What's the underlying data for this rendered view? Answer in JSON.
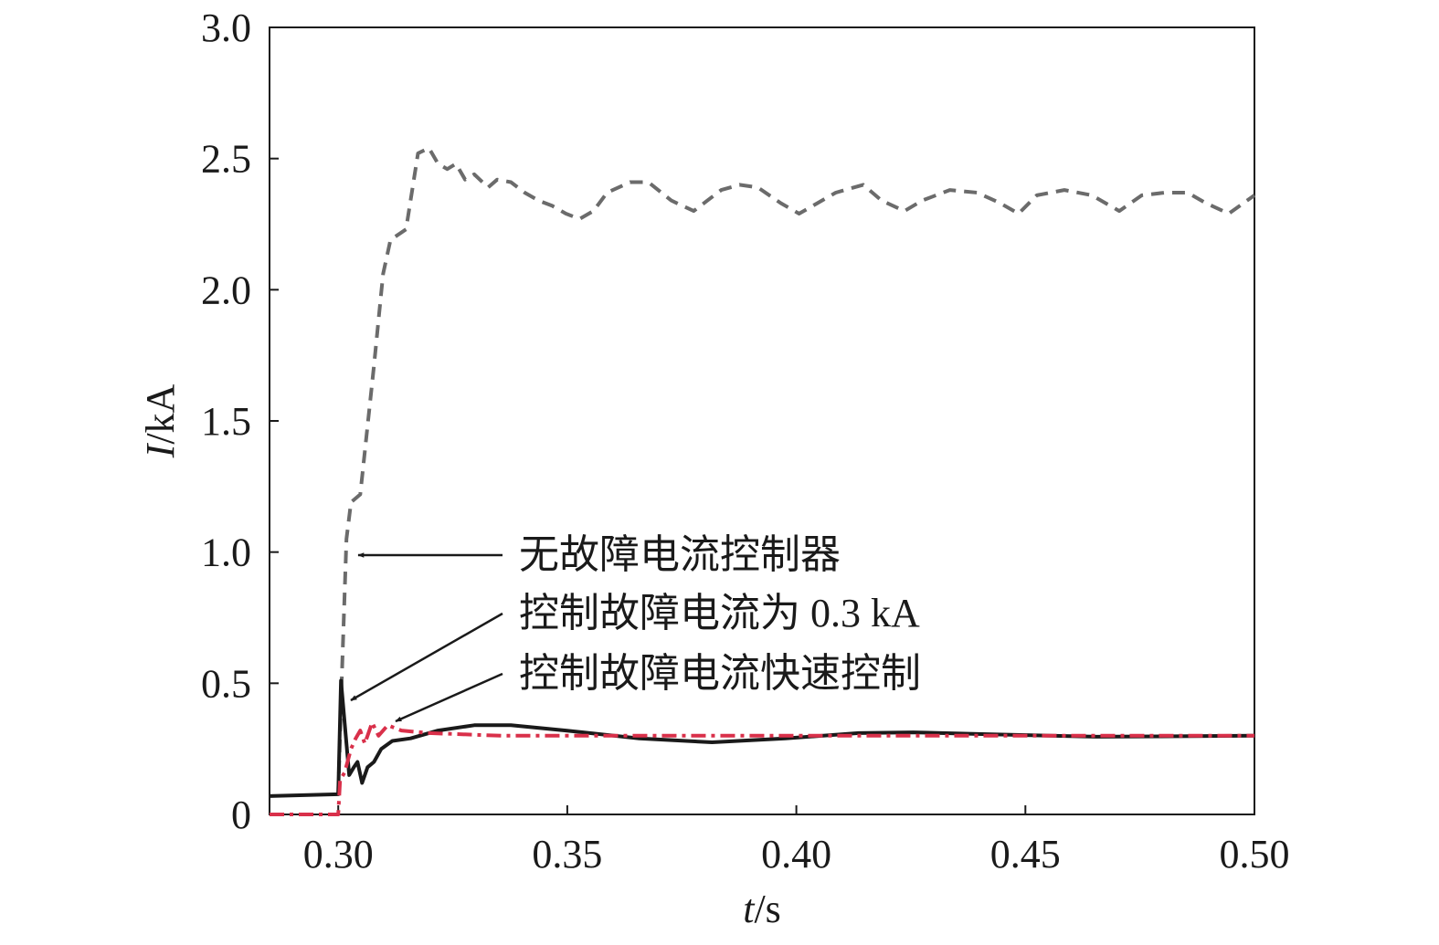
{
  "chart_data": {
    "type": "line",
    "x_label": "t/s",
    "y_label": "I/kA",
    "xlim": [
      0.285,
      0.5
    ],
    "ylim": [
      0,
      3
    ],
    "xticks": [
      {
        "value": 0.3,
        "label": "0.30"
      },
      {
        "value": 0.35,
        "label": "0.35"
      },
      {
        "value": 0.4,
        "label": "0.40"
      },
      {
        "value": 0.45,
        "label": "0.45"
      },
      {
        "value": 0.5,
        "label": "0.50"
      }
    ],
    "yticks": [
      0,
      0.5,
      {
        "value": 1,
        "label": "1.0"
      },
      1.5,
      {
        "value": 2,
        "label": "2.0"
      },
      2.5,
      {
        "value": 3,
        "label": "3.0"
      }
    ],
    "grid": false,
    "series": [
      {
        "name": "无故障电流控制器",
        "color": "#6b6b6b",
        "dash": "dashed",
        "x": [
          0.3,
          0.3008,
          0.3018,
          0.3028,
          0.3048,
          0.3078,
          0.3098,
          0.3114,
          0.3148,
          0.3174,
          0.3198,
          0.3218,
          0.3238,
          0.3257,
          0.3277,
          0.3297,
          0.3327,
          0.3347,
          0.3377,
          0.3407,
          0.3437,
          0.3467,
          0.3497,
          0.3527,
          0.3557,
          0.3587,
          0.3637,
          0.3677,
          0.3727,
          0.3776,
          0.3806,
          0.3836,
          0.3876,
          0.3916,
          0.3966,
          0.4006,
          0.4046,
          0.4086,
          0.4146,
          0.4186,
          0.4236,
          0.4275,
          0.4335,
          0.4395,
          0.4445,
          0.4485,
          0.4525,
          0.4585,
          0.4645,
          0.4705,
          0.4754,
          0.4804,
          0.4854,
          0.4894,
          0.4944,
          0.5
        ],
        "values": [
          0.077,
          0.53,
          1.05,
          1.19,
          1.22,
          1.71,
          2.06,
          2.19,
          2.23,
          2.52,
          2.54,
          2.48,
          2.46,
          2.48,
          2.42,
          2.44,
          2.39,
          2.42,
          2.41,
          2.37,
          2.34,
          2.32,
          2.29,
          2.27,
          2.3,
          2.37,
          2.41,
          2.41,
          2.34,
          2.3,
          2.34,
          2.38,
          2.4,
          2.39,
          2.33,
          2.29,
          2.33,
          2.37,
          2.4,
          2.34,
          2.3,
          2.34,
          2.38,
          2.37,
          2.33,
          2.29,
          2.36,
          2.38,
          2.36,
          2.3,
          2.36,
          2.37,
          2.37,
          2.33,
          2.29,
          2.36
        ]
      },
      {
        "name": "控制故障电流为 0.3 kA",
        "color": "#1a1a1a",
        "dash": "solid",
        "x": [
          0.285,
          0.3,
          0.3006,
          0.3014,
          0.3024,
          0.3034,
          0.3042,
          0.3052,
          0.3064,
          0.3078,
          0.3094,
          0.3118,
          0.3158,
          0.3218,
          0.3297,
          0.3377,
          0.3497,
          0.3657,
          0.3816,
          0.3976,
          0.4136,
          0.4255,
          0.4415,
          0.4655,
          0.5
        ],
        "values": [
          0.07,
          0.077,
          0.51,
          0.35,
          0.15,
          0.18,
          0.2,
          0.12,
          0.18,
          0.2,
          0.25,
          0.28,
          0.29,
          0.32,
          0.34,
          0.34,
          0.32,
          0.29,
          0.275,
          0.29,
          0.31,
          0.313,
          0.306,
          0.296,
          0.3
        ]
      },
      {
        "name": "控制故障电流快速控制",
        "color": "#d9304a",
        "dash": "dashdot",
        "x": [
          0.285,
          0.3,
          0.3004,
          0.3014,
          0.3028,
          0.3038,
          0.3048,
          0.3058,
          0.3074,
          0.3088,
          0.3108,
          0.3138,
          0.3198,
          0.3357,
          0.3856,
          0.5
        ],
        "values": [
          0,
          0,
          0.13,
          0.16,
          0.25,
          0.29,
          0.32,
          0.27,
          0.35,
          0.3,
          0.34,
          0.32,
          0.31,
          0.3,
          0.3,
          0.3
        ]
      }
    ]
  }
}
